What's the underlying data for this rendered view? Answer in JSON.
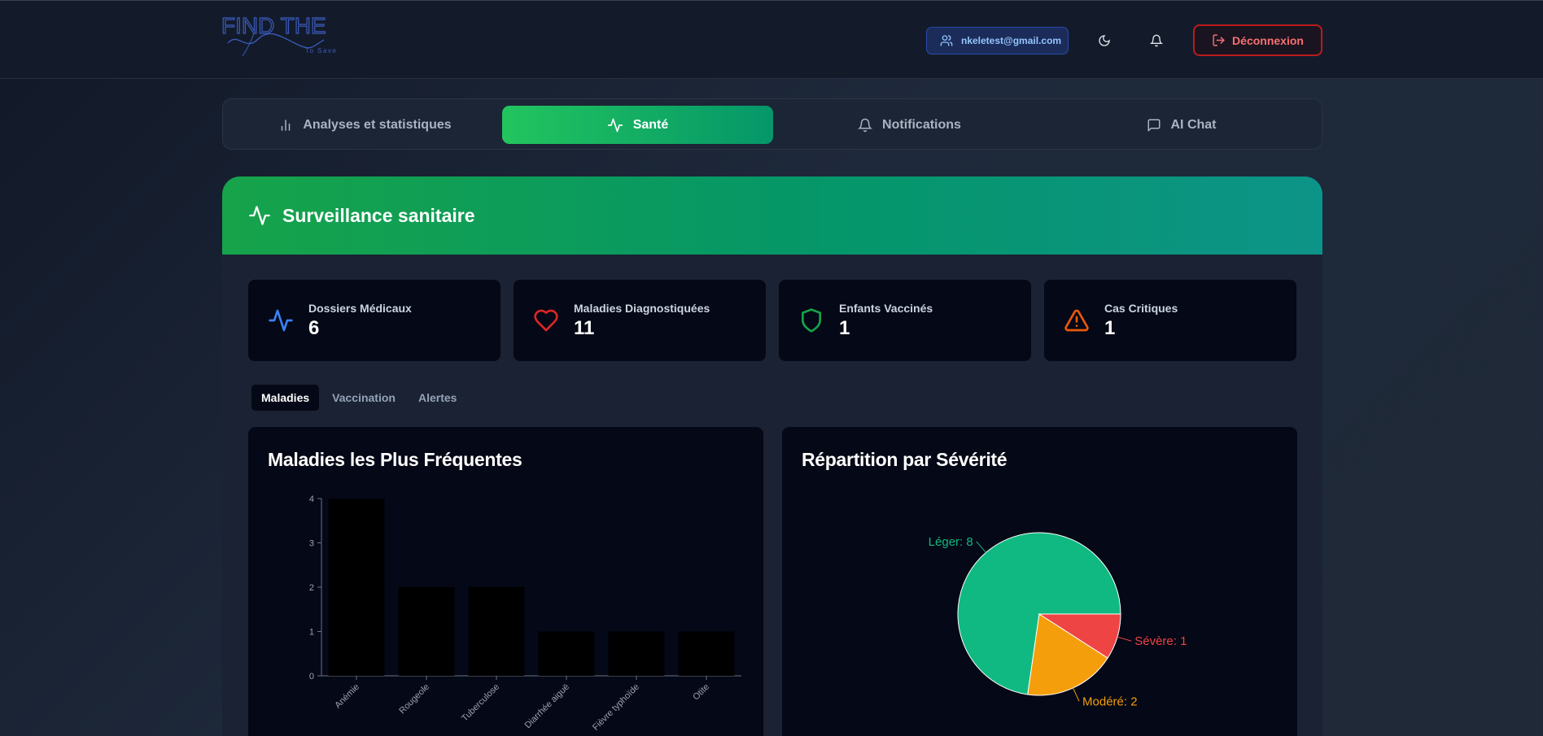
{
  "header": {
    "logo_text": "FIND THE Children To Save",
    "user_email": "nkeletest@gmail.com",
    "logout_label": "Déconnexion",
    "icons": [
      "user-icon",
      "moon-icon",
      "bell-icon",
      "logout-icon"
    ]
  },
  "nav": {
    "tabs": [
      {
        "label": "Analyses et statistiques",
        "icon": "bar-chart-icon",
        "active": false
      },
      {
        "label": "Santé",
        "icon": "activity-icon",
        "active": true
      },
      {
        "label": "Notifications",
        "icon": "bell-icon",
        "active": false
      },
      {
        "label": "AI Chat",
        "icon": "message-icon",
        "active": false
      }
    ]
  },
  "section": {
    "title": "Surveillance sanitaire",
    "stats": [
      {
        "label": "Dossiers Médicaux",
        "value": "6",
        "icon": "activity-icon",
        "color": "#3b82f6"
      },
      {
        "label": "Maladies Diagnostiquées",
        "value": "11",
        "icon": "heart-icon",
        "color": "#dc2626"
      },
      {
        "label": "Enfants Vaccinés",
        "value": "1",
        "icon": "shield-icon",
        "color": "#16a34a"
      },
      {
        "label": "Cas Critiques",
        "value": "1",
        "icon": "alert-triangle-icon",
        "color": "#ea580c"
      }
    ],
    "subtabs": [
      {
        "label": "Maladies",
        "active": true
      },
      {
        "label": "Vaccination",
        "active": false
      },
      {
        "label": "Alertes",
        "active": false
      }
    ]
  },
  "chart_data": [
    {
      "type": "bar",
      "title": "Maladies les Plus Fréquentes",
      "categories": [
        "Anémie",
        "Rougeole",
        "Tuberculose",
        "Diarrhée aiguë",
        "Fièvre typhoïde",
        "Otite"
      ],
      "values": [
        4,
        2,
        2,
        1,
        1,
        1
      ],
      "ylim": [
        0,
        4
      ],
      "yticks": [
        0,
        1,
        2,
        3,
        4
      ],
      "bar_color": "#000000",
      "grid": false
    },
    {
      "type": "pie",
      "title": "Répartition par Sévérité",
      "slices": [
        {
          "label": "Léger",
          "value": 8,
          "display": "Léger: 8",
          "color": "#10b981"
        },
        {
          "label": "Modéré",
          "value": 2,
          "display": "Modéré: 2",
          "color": "#f59e0b"
        },
        {
          "label": "Sévère",
          "value": 1,
          "display": "Sévère: 1",
          "color": "#ef4444"
        }
      ]
    }
  ]
}
